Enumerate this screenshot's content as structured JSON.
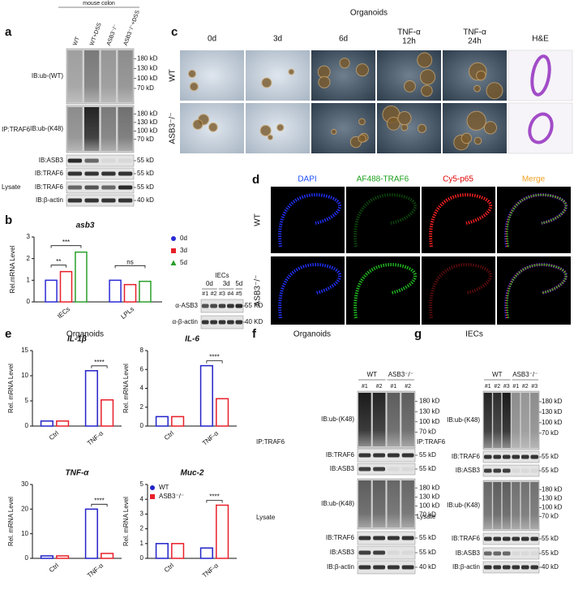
{
  "panels": {
    "a": {
      "label": "a",
      "header": "mouse colon",
      "lanes": [
        "WT",
        "WT+DSS",
        "ASB3⁻/⁻",
        "ASB3⁻/⁻+DSS"
      ],
      "sections": [
        "IP:TRAF6",
        "Lysate"
      ],
      "blots": [
        {
          "label": "IB:ub-(WT)",
          "markers": [
            "180 kD",
            "130 kD",
            "100 kD",
            "70 kD"
          ]
        },
        {
          "label": "IB:ub-(K48)",
          "markers": [
            "180 kD",
            "130 kD",
            "100 kD",
            "70 kD"
          ]
        },
        {
          "label": "IB:ASB3",
          "markers": [
            "55 kD"
          ]
        },
        {
          "label": "IB:TRAF6",
          "markers": [
            "55 kD"
          ]
        },
        {
          "label": "IB:TRAF6",
          "markers": [
            "55 kD"
          ]
        },
        {
          "label": "IB:β-actin",
          "markers": [
            "40 kD"
          ]
        }
      ]
    },
    "b": {
      "label": "b"
    },
    "b_blot": {
      "title": "IECs",
      "groups": [
        "0d",
        "3d",
        "5d"
      ],
      "lanes": [
        "#1",
        "#2",
        "#3",
        "#4",
        "#5"
      ],
      "blots": [
        {
          "label": "α-ASB3",
          "markers": [
            "55 KD"
          ]
        },
        {
          "label": "α-β-actin",
          "markers": [
            "40 KD"
          ]
        }
      ]
    },
    "c": {
      "label": "c",
      "title": "Organoids",
      "columns": [
        [
          "0d"
        ],
        [
          "3d"
        ],
        [
          "6d"
        ],
        [
          "TNF-α",
          "12h"
        ],
        [
          "TNF-α",
          "24h"
        ],
        [
          "H&E"
        ]
      ],
      "rows": [
        "WT",
        "ASB3⁻/⁻"
      ]
    },
    "d": {
      "label": "d",
      "columns": [
        "DAPI",
        "AF488-TRAF6",
        "Cy5-p65",
        "Merge"
      ],
      "rows": [
        "WT",
        "ASB3⁻/⁻"
      ]
    },
    "e": {
      "label": "e",
      "title": "Organoids"
    },
    "f": {
      "label": "f",
      "title": "Organoids",
      "groups": [
        "WT",
        "ASB3⁻/⁻"
      ],
      "lanes": [
        "#1",
        "#2",
        "#1",
        "#2"
      ],
      "sections": [
        "IP:TRAF6",
        "Lysate"
      ],
      "blots": [
        {
          "label": "IB:ub-(K48)",
          "markers": [
            "180 kD",
            "130 kD",
            "100 kD",
            "70 kD"
          ]
        },
        {
          "label": "IB:TRAF6",
          "markers": [
            "55 kD"
          ]
        },
        {
          "label": "IB:ASB3",
          "markers": [
            "55 kD"
          ]
        },
        {
          "label": "IB:ub-(K48)",
          "markers": [
            "180 kD",
            "130 kD",
            "100 kD",
            "70 kD"
          ]
        },
        {
          "label": "IB:TRAF6",
          "markers": [
            "55 kD"
          ]
        },
        {
          "label": "IB:ASB3",
          "markers": [
            "55 kD"
          ]
        },
        {
          "label": "IB:β-actin",
          "markers": [
            "40 kD"
          ]
        }
      ]
    },
    "g": {
      "label": "g",
      "title": "IECs",
      "groups": [
        "WT",
        "ASB3⁻/⁻"
      ],
      "lanes": [
        "#1",
        "#2",
        "#3",
        "#1",
        "#2",
        "#3"
      ],
      "sections": [
        "IP:TRAF6",
        "Lysate"
      ],
      "blots": [
        {
          "label": "IB:ub-(K48)",
          "markers": [
            "180 kD",
            "130 kD",
            "100 kD",
            "70 kD"
          ]
        },
        {
          "label": "IB:TRAF6",
          "markers": [
            "55 kD"
          ]
        },
        {
          "label": "IB:ASB3",
          "markers": [
            "55 kD"
          ]
        },
        {
          "label": "IB:ub-(K48)",
          "markers": [
            "180 kD",
            "130 kD",
            "100 kD",
            "70 kD"
          ]
        },
        {
          "label": "IB:TRAF6",
          "markers": [
            "55 kD"
          ]
        },
        {
          "label": "IB:ASB3",
          "markers": [
            "55 kD"
          ]
        },
        {
          "label": "IB:β-actin",
          "markers": [
            "40 kD"
          ]
        }
      ]
    }
  },
  "chart_data": [
    {
      "type": "bar",
      "title": "asb3",
      "y_label": "Rel.mRNA Level",
      "categories": [
        "IECs",
        "LPLs"
      ],
      "series": [
        {
          "name": "0d",
          "color": "#2b2bd6",
          "marker": "circle",
          "values": [
            1.0,
            1.0
          ]
        },
        {
          "name": "3d",
          "color": "#e8202a",
          "marker": "square",
          "values": [
            1.4,
            0.8
          ]
        },
        {
          "name": "5d",
          "color": "#2aa02a",
          "marker": "triangle",
          "values": [
            2.3,
            0.95
          ]
        }
      ],
      "ylim": [
        0,
        3
      ],
      "yticks": [
        0,
        1,
        2,
        3
      ],
      "legend": "right",
      "annotations": [
        "**",
        "***",
        "ns"
      ]
    },
    {
      "type": "bar",
      "title": "IL-1β",
      "y_label": "Rel. mRNA Level",
      "categories": [
        "Ctrl",
        "TNF-α"
      ],
      "series": [
        {
          "color": "#2323c8",
          "values": [
            1,
            11
          ]
        },
        {
          "color": "#e8202a",
          "values": [
            1,
            5.2
          ]
        }
      ],
      "ylim": [
        0,
        15
      ],
      "yticks": [
        0,
        5,
        10,
        15
      ],
      "annotations": [
        "****"
      ]
    },
    {
      "type": "bar",
      "title": "IL-6",
      "y_label": "Rel. mRNA Level",
      "categories": [
        "Ctrl",
        "TNF-α"
      ],
      "series": [
        {
          "color": "#2323c8",
          "values": [
            1,
            6.4
          ]
        },
        {
          "color": "#e8202a",
          "values": [
            1,
            2.9
          ]
        }
      ],
      "ylim": [
        0,
        8
      ],
      "yticks": [
        0,
        2,
        4,
        6,
        8
      ],
      "annotations": [
        "****"
      ]
    },
    {
      "type": "bar",
      "title": "TNF-α",
      "y_label": "Rel. mRNA Level",
      "categories": [
        "Ctrl",
        "TNF-α"
      ],
      "series": [
        {
          "color": "#2323c8",
          "values": [
            1,
            20
          ]
        },
        {
          "color": "#e8202a",
          "values": [
            1,
            2
          ]
        }
      ],
      "ylim": [
        0,
        30
      ],
      "yticks": [
        0,
        10,
        20,
        30
      ],
      "annotations": [
        "****"
      ]
    },
    {
      "type": "bar",
      "title": "Muc-2",
      "y_label": "Rel. mRNA Level",
      "categories": [
        "Ctrl",
        "TNF-α"
      ],
      "series": [
        {
          "name": "WT",
          "color": "#2323c8",
          "marker": "circle",
          "values": [
            1,
            0.7
          ]
        },
        {
          "name": "ASB3⁻/⁻",
          "color": "#e8202a",
          "marker": "square",
          "values": [
            1,
            3.6
          ]
        }
      ],
      "ylim": [
        0,
        5
      ],
      "yticks": [
        0,
        1,
        2,
        3,
        4,
        5
      ],
      "legend": "upper left",
      "annotations": [
        "****"
      ]
    }
  ]
}
